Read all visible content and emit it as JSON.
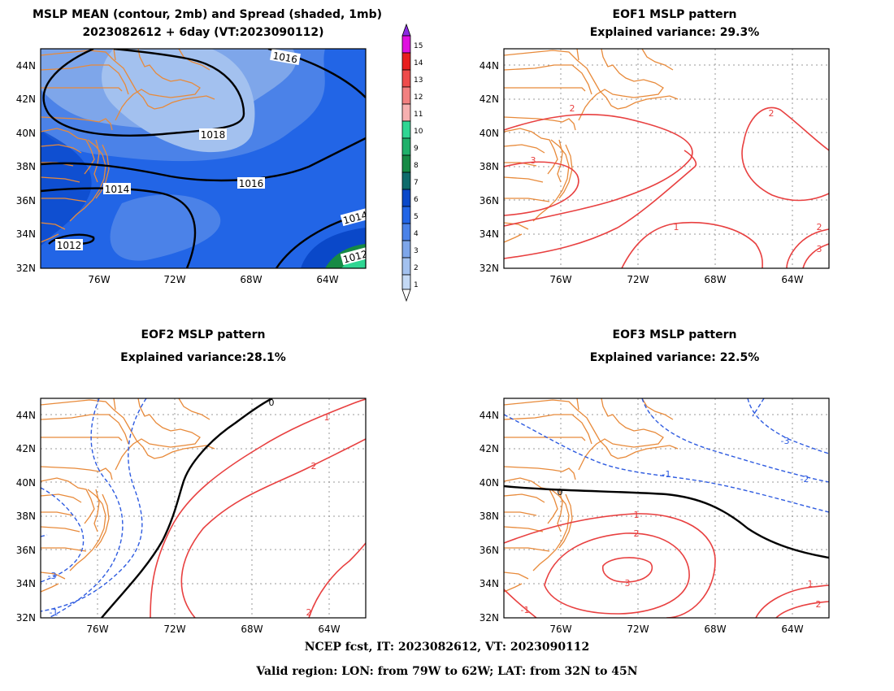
{
  "panels": {
    "p1": {
      "title1": "MSLP MEAN (contour, 2mb) and Spread (shaded, 1mb)",
      "title2": "2023082612 + 6day (VT:2023090112)"
    },
    "p2": {
      "title1": "EOF1 MSLP pattern",
      "title2": "Explained variance: 29.3%"
    },
    "p3": {
      "title1": "EOF2 MSLP pattern",
      "title2": "Explained variance:28.1%"
    },
    "p4": {
      "title1": "EOF3 MSLP pattern",
      "title2": "Explained variance: 22.5%"
    }
  },
  "axes": {
    "lat_labels": [
      "44N",
      "42N",
      "40N",
      "38N",
      "36N",
      "34N",
      "32N"
    ],
    "lon_labels": [
      "76W",
      "72W",
      "68W",
      "64W"
    ]
  },
  "colorbar": {
    "levels": [
      "1",
      "2",
      "3",
      "4",
      "5",
      "6",
      "7",
      "8",
      "9",
      "10",
      "11",
      "12",
      "13",
      "14",
      "15"
    ],
    "colors": [
      "#c4d9f5",
      "#a3c1ef",
      "#7ea6ea",
      "#4b82e8",
      "#2265e6",
      "#0a48c9",
      "#0f6b6b",
      "#168a45",
      "#1fb06a",
      "#2fd693",
      "#f6b0b0",
      "#f28080",
      "#ee4c4c",
      "#e81e1e",
      "#e010e0",
      "#8a2be2"
    ]
  },
  "contours": {
    "p1": [
      "1016",
      "1018",
      "1016",
      "1014",
      "1014",
      "1012",
      "1012"
    ],
    "p2": [
      "2",
      "2",
      "3",
      "1",
      "2",
      "3"
    ],
    "p3": [
      "0",
      "1",
      "2",
      "2",
      "-3",
      "-1"
    ],
    "p4": [
      "0",
      "1",
      "2",
      "3",
      "1",
      "2",
      "-1",
      "-2",
      "-3",
      "-1"
    ]
  },
  "colors": {
    "coast": "#e88a3a",
    "positive": "#e84040",
    "negative": "#2e5be0",
    "zero": "#000000",
    "grid": "#9a9a9a"
  },
  "footer": {
    "line1": "NCEP fcst, IT: 2023082612, VT: 2023090112",
    "line2": "Valid region: LON: from 79W to 62W; LAT: from 32N to 45N"
  }
}
